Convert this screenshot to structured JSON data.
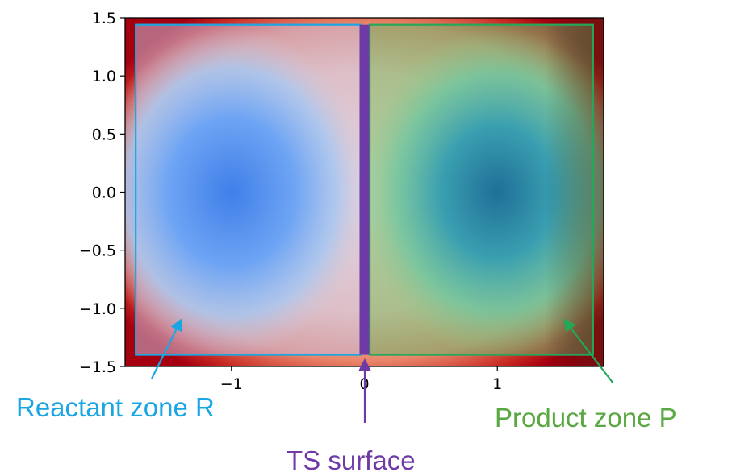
{
  "chart_data": {
    "type": "heatmap",
    "title": "",
    "xlabel": "",
    "ylabel": "",
    "xlim": [
      -1.8,
      1.8
    ],
    "ylim": [
      -1.5,
      1.5
    ],
    "x_ticks": [
      {
        "value": -1,
        "label": "−1"
      },
      {
        "value": 0,
        "label": "0"
      },
      {
        "value": 1,
        "label": "1"
      }
    ],
    "y_ticks": [
      {
        "value": 1.5,
        "label": "1.5"
      },
      {
        "value": 1.0,
        "label": "1.0"
      },
      {
        "value": 0.5,
        "label": "0.5"
      },
      {
        "value": 0.0,
        "label": "0.0"
      },
      {
        "value": -0.5,
        "label": "−0.5"
      },
      {
        "value": -1.0,
        "label": "−1.0"
      },
      {
        "value": -1.5,
        "label": "−1.5"
      }
    ],
    "minima": [
      {
        "x": -1,
        "y": 0
      },
      {
        "x": 1,
        "y": 0
      }
    ],
    "regions": [
      {
        "id": "reactant",
        "x0": -1.72,
        "x1": -0.03,
        "y0": -1.4,
        "y1": 1.44,
        "color": "#1aa6e4",
        "fill": "#b9b6dc"
      },
      {
        "id": "product",
        "x0": 0.04,
        "x1": 1.72,
        "y0": -1.4,
        "y1": 1.44,
        "color": "#23a85a",
        "fill": "#6dbf6a"
      }
    ],
    "ts_surface": {
      "x": 0.0,
      "color": "#6e3aa6"
    }
  },
  "annotations": {
    "reactant_label": "Reactant zone R",
    "product_label": "Product zone P",
    "ts_label": "TS surface"
  },
  "colors": {
    "reactant": "#1aa6e4",
    "product": "#5aa842",
    "product_arrow": "#23a85a",
    "ts": "#6e3aa6",
    "edge_dark": "#a50010",
    "edge_light": "#f4b49a",
    "well_core": "#3f7fe8"
  }
}
